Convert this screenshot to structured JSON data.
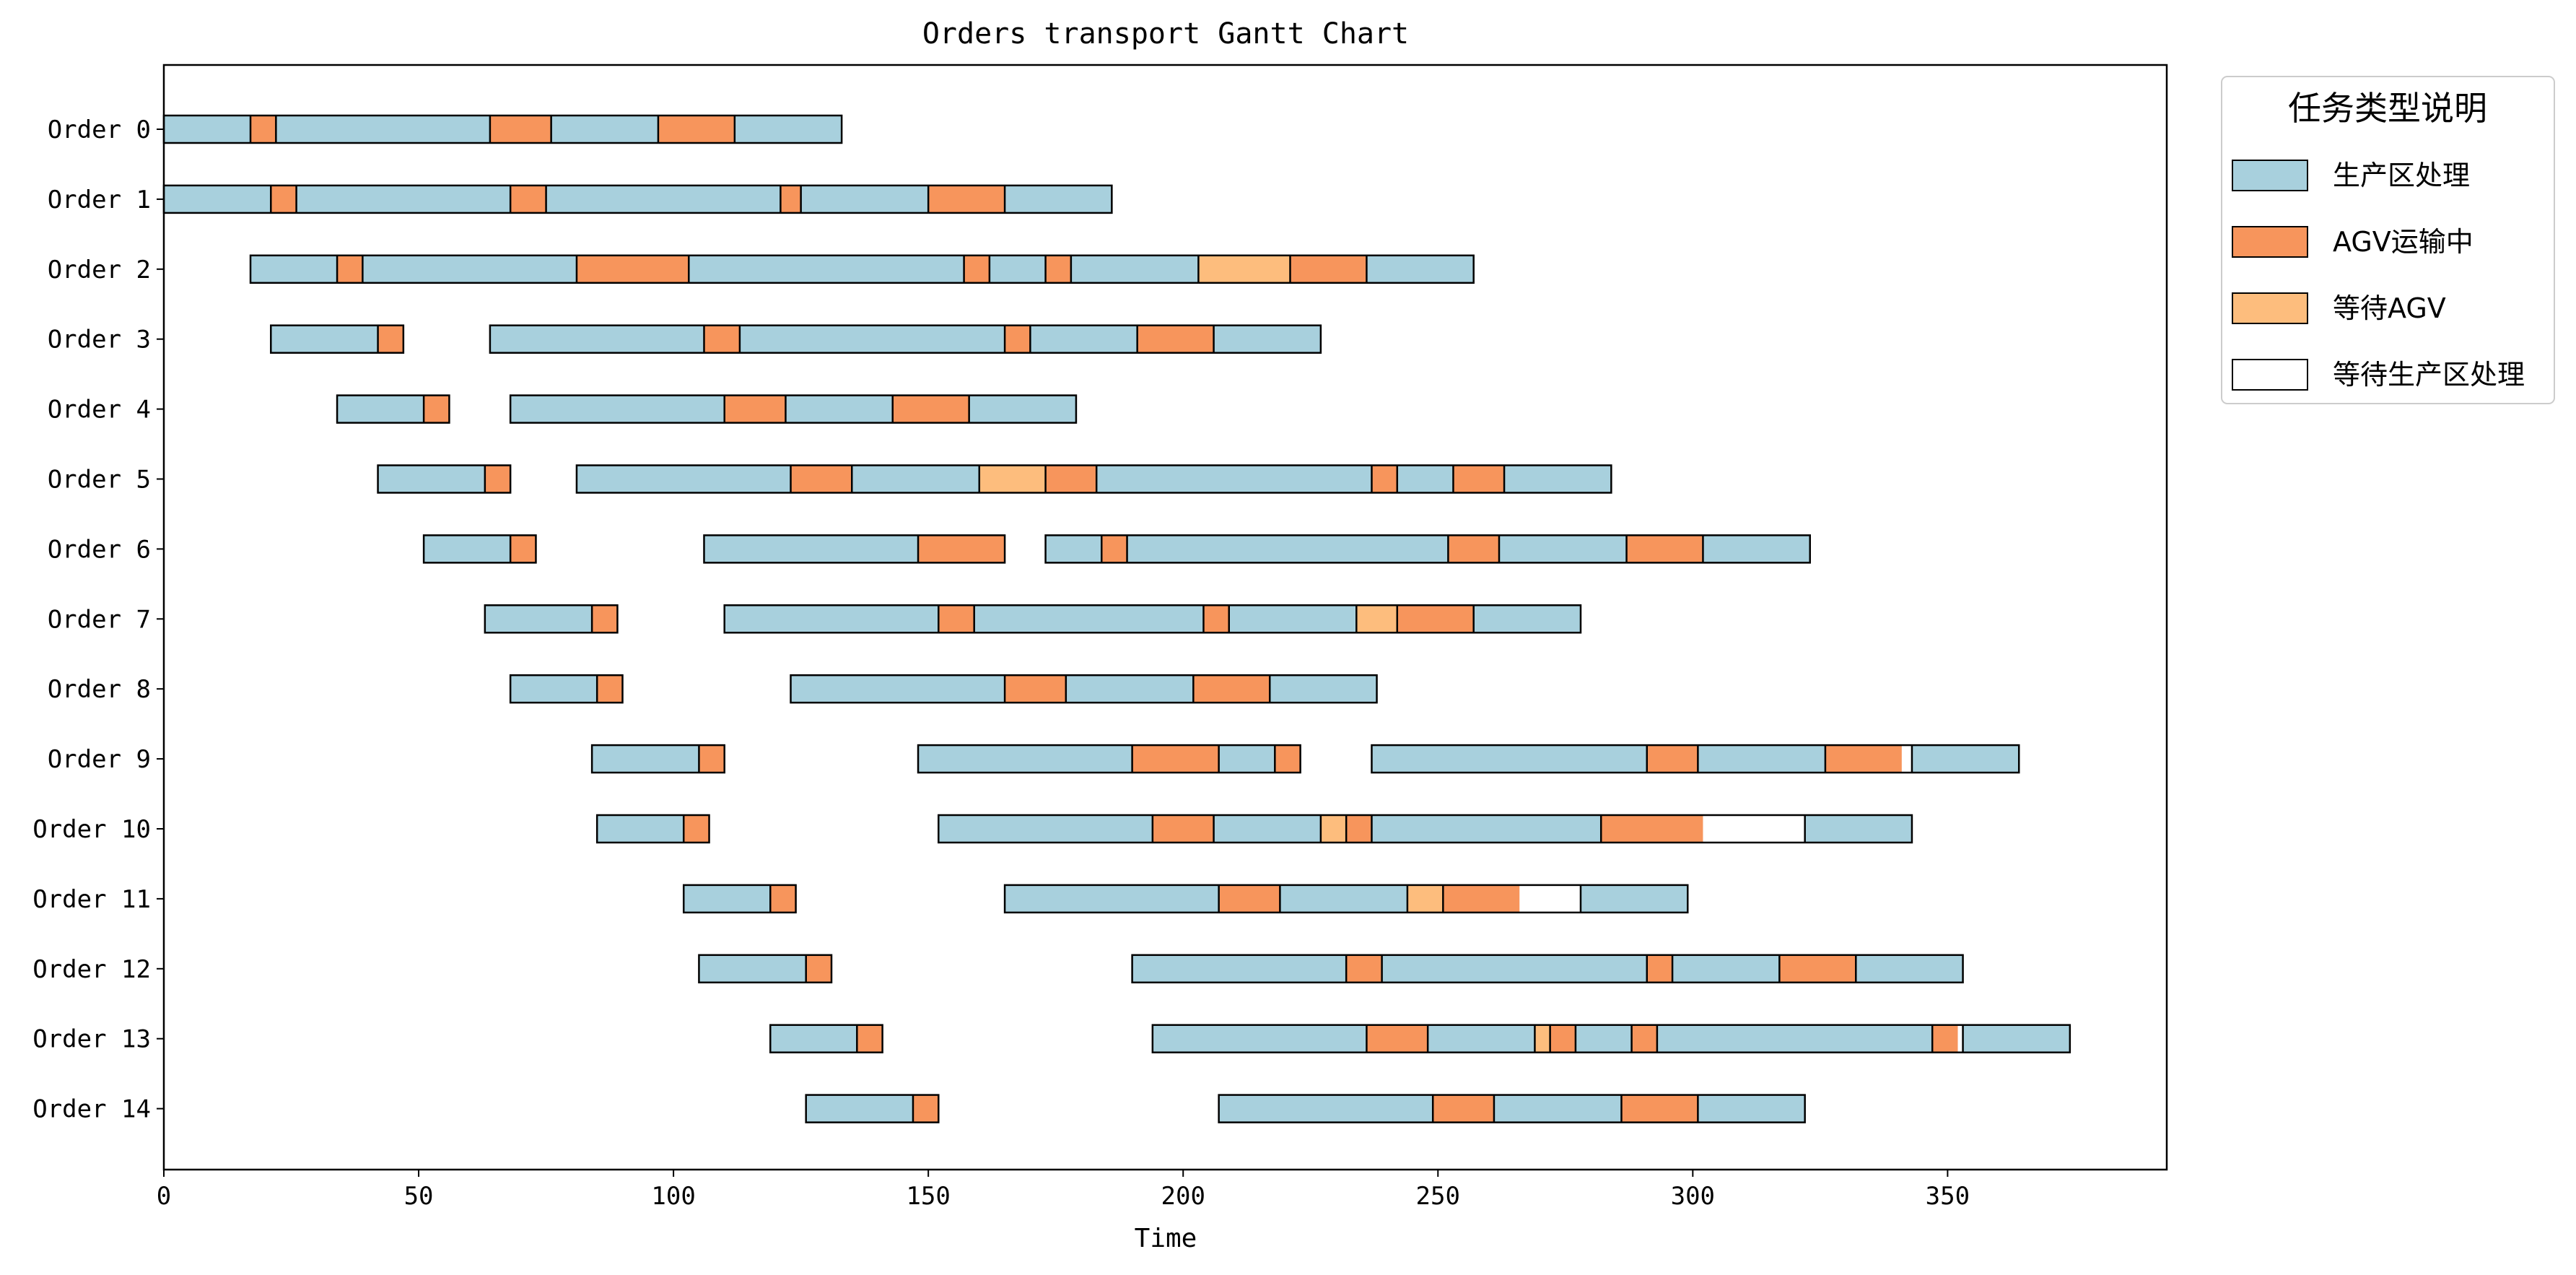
{
  "chart_data": {
    "type": "gantt",
    "title": "Orders transport Gantt Chart",
    "xlabel": "Time",
    "ylabel": "",
    "xlim": [
      0,
      393
    ],
    "xticks": [
      0,
      50,
      100,
      150,
      200,
      250,
      300,
      350
    ],
    "categories": [
      "Order 0",
      "Order 1",
      "Order 2",
      "Order 3",
      "Order 4",
      "Order 5",
      "Order 6",
      "Order 7",
      "Order 8",
      "Order 9",
      "Order 10",
      "Order 11",
      "Order 12",
      "Order 13",
      "Order 14"
    ],
    "legend": {
      "title": "任务类型说明",
      "placement": "outside-top-right",
      "items": [
        {
          "key": "P",
          "label": "生产区处理",
          "color": "#a8d0dd"
        },
        {
          "key": "A",
          "label": "AGV运输中",
          "color": "#f7955c"
        },
        {
          "key": "W",
          "label": "等待AGV",
          "color": "#fdbd7d"
        },
        {
          "key": "Q",
          "label": "等待生产区处理",
          "color": "#ffffff"
        }
      ]
    },
    "rows": [
      [
        [
          0,
          17,
          "P"
        ],
        [
          17,
          22,
          "A"
        ],
        [
          22,
          64,
          "P"
        ],
        [
          64,
          76,
          "A"
        ],
        [
          76,
          97,
          "P"
        ],
        [
          97,
          112,
          "A"
        ],
        [
          112,
          133,
          "P"
        ]
      ],
      [
        [
          0,
          21,
          "P"
        ],
        [
          21,
          26,
          "A"
        ],
        [
          26,
          68,
          "P"
        ],
        [
          68,
          75,
          "A"
        ],
        [
          75,
          121,
          "P"
        ],
        [
          121,
          125,
          "A"
        ],
        [
          125,
          150,
          "P"
        ],
        [
          150,
          165,
          "A"
        ],
        [
          165,
          186,
          "P"
        ]
      ],
      [
        [
          17,
          34,
          "P"
        ],
        [
          34,
          39,
          "A"
        ],
        [
          39,
          81,
          "P"
        ],
        [
          81,
          103,
          "A"
        ],
        [
          103,
          157,
          "P"
        ],
        [
          157,
          162,
          "A"
        ],
        [
          162,
          173,
          "P"
        ],
        [
          173,
          178,
          "A"
        ],
        [
          178,
          203,
          "P"
        ],
        [
          203,
          221,
          "W"
        ],
        [
          221,
          236,
          "A"
        ],
        [
          236,
          257,
          "P"
        ]
      ],
      [
        [
          21,
          42,
          "P"
        ],
        [
          42,
          47,
          "A"
        ]
      ],
      [
        [
          64,
          106,
          "P"
        ],
        [
          106,
          113,
          "A"
        ],
        [
          113,
          165,
          "P"
        ],
        [
          165,
          170,
          "A"
        ],
        [
          170,
          191,
          "P"
        ],
        [
          191,
          206,
          "A"
        ],
        [
          206,
          227,
          "P"
        ]
      ],
      [
        [
          34,
          51,
          "P"
        ],
        [
          51,
          56,
          "A"
        ]
      ],
      [
        [
          68,
          110,
          "P"
        ],
        [
          110,
          122,
          "A"
        ],
        [
          122,
          143,
          "P"
        ],
        [
          143,
          158,
          "A"
        ],
        [
          158,
          179,
          "P"
        ]
      ],
      [
        [
          42,
          63,
          "P"
        ],
        [
          63,
          68,
          "A"
        ]
      ],
      [
        [
          81,
          123,
          "P"
        ],
        [
          123,
          135,
          "A"
        ],
        [
          135,
          160,
          "P"
        ],
        [
          160,
          173,
          "W"
        ],
        [
          173,
          183,
          "A"
        ],
        [
          183,
          237,
          "P"
        ],
        [
          237,
          242,
          "A"
        ],
        [
          242,
          253,
          "P"
        ],
        [
          253,
          263,
          "A"
        ],
        [
          263,
          284,
          "P"
        ]
      ],
      [
        [
          51,
          68,
          "P"
        ],
        [
          68,
          73,
          "A"
        ]
      ],
      [
        [
          106,
          148,
          "P"
        ],
        [
          148,
          165,
          "A"
        ]
      ],
      [
        [
          173,
          184,
          "P"
        ],
        [
          184,
          189,
          "A"
        ],
        [
          189,
          252,
          "P"
        ],
        [
          252,
          262,
          "A"
        ],
        [
          262,
          287,
          "P"
        ],
        [
          287,
          302,
          "A"
        ],
        [
          302,
          323,
          "P"
        ]
      ],
      [
        [
          63,
          84,
          "P"
        ],
        [
          84,
          89,
          "A"
        ]
      ],
      [
        [
          110,
          152,
          "P"
        ],
        [
          152,
          159,
          "A"
        ],
        [
          159,
          204,
          "P"
        ],
        [
          204,
          209,
          "A"
        ],
        [
          209,
          234,
          "P"
        ],
        [
          234,
          242,
          "W"
        ],
        [
          242,
          257,
          "A"
        ],
        [
          257,
          278,
          "P"
        ]
      ],
      [
        [
          68,
          85,
          "P"
        ],
        [
          85,
          90,
          "A"
        ]
      ],
      [
        [
          123,
          165,
          "P"
        ],
        [
          165,
          177,
          "A"
        ],
        [
          177,
          202,
          "P"
        ],
        [
          202,
          217,
          "A"
        ],
        [
          217,
          238,
          "P"
        ]
      ],
      [
        [
          84,
          105,
          "P"
        ],
        [
          105,
          110,
          "A"
        ]
      ],
      [
        [
          148,
          190,
          "P"
        ],
        [
          190,
          207,
          "A"
        ],
        [
          207,
          218,
          "P"
        ],
        [
          218,
          223,
          "A"
        ]
      ],
      [
        [
          237,
          291,
          "P"
        ],
        [
          291,
          301,
          "A"
        ],
        [
          301,
          326,
          "P"
        ],
        [
          326,
          341,
          "A"
        ],
        [
          343,
          364,
          "P"
        ]
      ],
      [
        [
          85,
          102,
          "P"
        ],
        [
          102,
          107,
          "A"
        ]
      ],
      [
        [
          152,
          194,
          "P"
        ],
        [
          194,
          206,
          "A"
        ],
        [
          206,
          227,
          "P"
        ],
        [
          227,
          232,
          "W"
        ],
        [
          232,
          237,
          "A"
        ],
        [
          237,
          282,
          "P"
        ],
        [
          282,
          302,
          "A"
        ],
        [
          322,
          343,
          "P"
        ]
      ],
      [
        [
          102,
          119,
          "P"
        ],
        [
          119,
          124,
          "A"
        ]
      ],
      [
        [
          165,
          207,
          "P"
        ],
        [
          207,
          219,
          "A"
        ],
        [
          219,
          244,
          "P"
        ],
        [
          244,
          251,
          "W"
        ],
        [
          251,
          266,
          "A"
        ],
        [
          278,
          299,
          "P"
        ]
      ],
      [
        [
          105,
          126,
          "P"
        ],
        [
          126,
          131,
          "A"
        ]
      ],
      [
        [
          190,
          232,
          "P"
        ],
        [
          232,
          239,
          "A"
        ],
        [
          239,
          291,
          "P"
        ],
        [
          291,
          296,
          "A"
        ],
        [
          296,
          317,
          "P"
        ],
        [
          317,
          332,
          "A"
        ],
        [
          332,
          353,
          "P"
        ]
      ],
      [
        [
          119,
          136,
          "P"
        ],
        [
          136,
          141,
          "A"
        ]
      ],
      [
        [
          194,
          236,
          "P"
        ],
        [
          236,
          248,
          "A"
        ],
        [
          248,
          269,
          "P"
        ],
        [
          269,
          272,
          "W"
        ],
        [
          272,
          277,
          "A"
        ],
        [
          277,
          288,
          "P"
        ],
        [
          288,
          293,
          "A"
        ],
        [
          293,
          347,
          "P"
        ],
        [
          347,
          352,
          "A"
        ],
        [
          353,
          374,
          "P"
        ]
      ],
      [
        [
          126,
          147,
          "P"
        ],
        [
          147,
          152,
          "A"
        ]
      ],
      [
        [
          207,
          249,
          "P"
        ],
        [
          249,
          261,
          "A"
        ],
        [
          261,
          286,
          "P"
        ],
        [
          286,
          301,
          "A"
        ],
        [
          301,
          322,
          "P"
        ]
      ]
    ],
    "row_index": [
      0,
      1,
      2,
      3,
      3,
      4,
      4,
      5,
      5,
      6,
      6,
      6,
      7,
      7,
      8,
      8,
      9,
      9,
      9,
      10,
      10,
      11,
      11,
      12,
      12,
      13,
      13,
      14,
      14
    ]
  }
}
